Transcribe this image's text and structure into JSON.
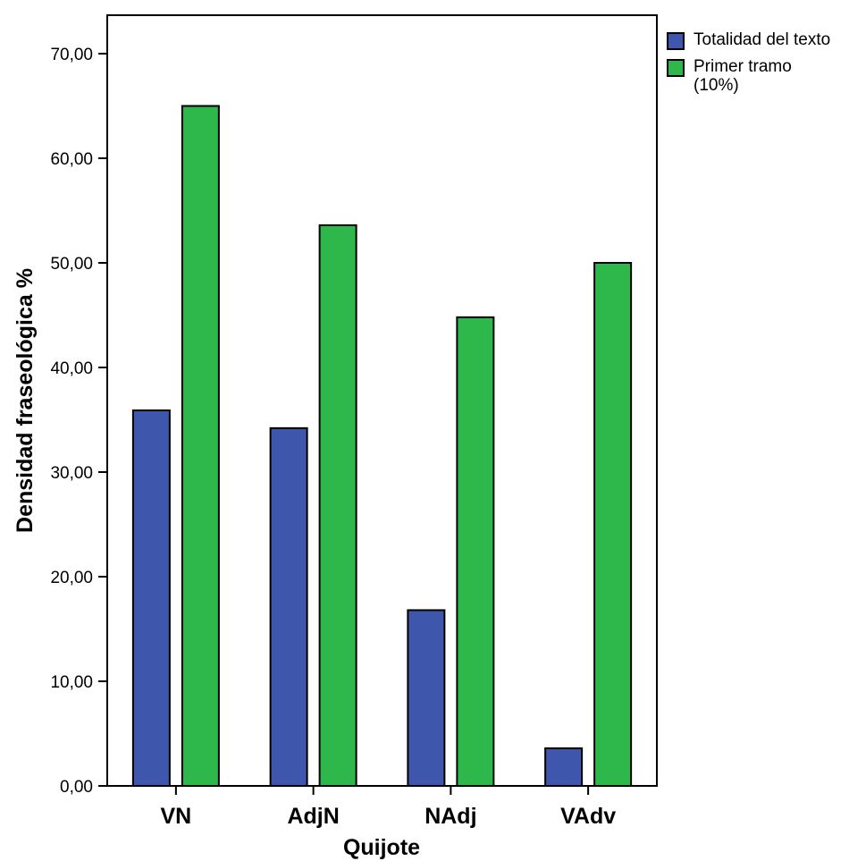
{
  "chart_data": {
    "type": "bar",
    "categories": [
      "VN",
      "AdjN",
      "NAdj",
      "VAdv"
    ],
    "series": [
      {
        "name": "Totalidad del texto",
        "values": [
          35.9,
          34.2,
          16.8,
          3.6
        ],
        "color": "#3e56ac"
      },
      {
        "name": "Primer tramo\n(10%)",
        "values": [
          65.0,
          53.6,
          44.8,
          50.0
        ],
        "color": "#2eb84b"
      }
    ],
    "xlabel": "Quijote",
    "ylabel": "Densidad fraseológica %",
    "ylim": [
      0,
      75
    ],
    "yticks": [
      "0,00",
      "10,00",
      "20,00",
      "30,00",
      "40,00",
      "50,00",
      "60,00",
      "70,00"
    ],
    "legend_position": "top-right",
    "grid": false
  }
}
